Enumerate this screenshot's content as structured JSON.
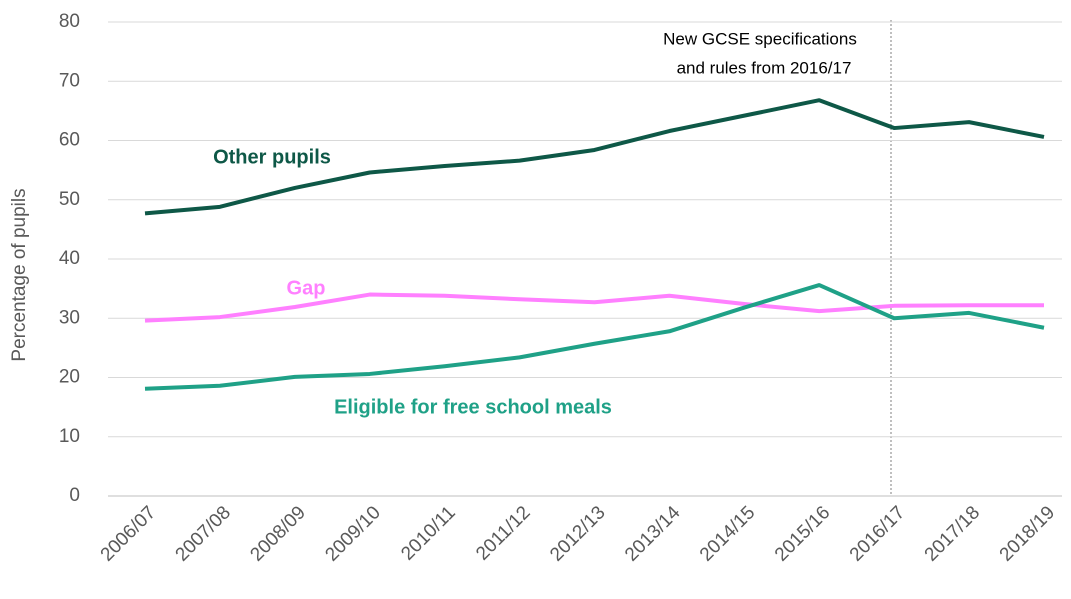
{
  "chart_data": {
    "type": "line",
    "y_label": "Percentage of pupils",
    "annotation": [
      "New GCSE specifications",
      "and rules from 2016/17"
    ],
    "categories": [
      "2006/07",
      "2007/08",
      "2008/09",
      "2009/10",
      "2010/11",
      "2011/12",
      "2012/13",
      "2013/14",
      "2014/15",
      "2015/16",
      "2016/17",
      "2017/18",
      "2018/19"
    ],
    "series": [
      {
        "name": "Other pupils",
        "color": "#0e5847",
        "values": [
          47.7,
          48.8,
          52.0,
          54.6,
          55.7,
          56.6,
          58.4,
          61.6,
          64.2,
          66.8,
          62.1,
          63.1,
          60.6
        ]
      },
      {
        "name": "Gap",
        "color": "#ff80ff",
        "values": [
          29.6,
          30.2,
          31.9,
          34.0,
          33.8,
          33.2,
          32.7,
          33.8,
          32.4,
          31.2,
          32.1,
          32.2,
          32.2
        ]
      },
      {
        "name": "Eligible for free school meals",
        "color": "#1fa187",
        "values": [
          18.1,
          18.6,
          20.1,
          20.6,
          21.9,
          23.4,
          25.7,
          27.8,
          31.8,
          35.6,
          30.0,
          30.9,
          28.4
        ]
      }
    ],
    "ylim": [
      0,
      80
    ],
    "yticks": [
      0,
      10,
      20,
      30,
      40,
      50,
      60,
      70,
      80
    ],
    "grid": true
  }
}
